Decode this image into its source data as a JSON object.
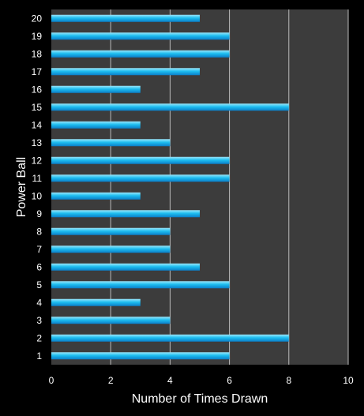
{
  "chart_data": {
    "type": "bar",
    "orientation": "horizontal",
    "title": "",
    "xlabel": "Number of Times Drawn",
    "ylabel": "Power Ball",
    "xlim": [
      0,
      10
    ],
    "xticks": [
      0,
      2,
      4,
      6,
      8,
      10
    ],
    "grid": true,
    "legend": "none",
    "categories": [
      "1",
      "2",
      "3",
      "4",
      "5",
      "6",
      "7",
      "8",
      "9",
      "10",
      "11",
      "12",
      "13",
      "14",
      "15",
      "16",
      "17",
      "18",
      "19",
      "20"
    ],
    "values": [
      6,
      8,
      4,
      3,
      6,
      5,
      4,
      4,
      5,
      3,
      6,
      6,
      4,
      3,
      8,
      3,
      5,
      6,
      6,
      5
    ],
    "colors": {
      "background": "#000000",
      "plot_area": "#3c3c3c",
      "grid": "#bdbdbd",
      "bar_top": "#9ae6fa",
      "bar_mid": "#1ebef0",
      "bar_bottom": "#0a7ec8",
      "text": "#ffffff"
    }
  }
}
